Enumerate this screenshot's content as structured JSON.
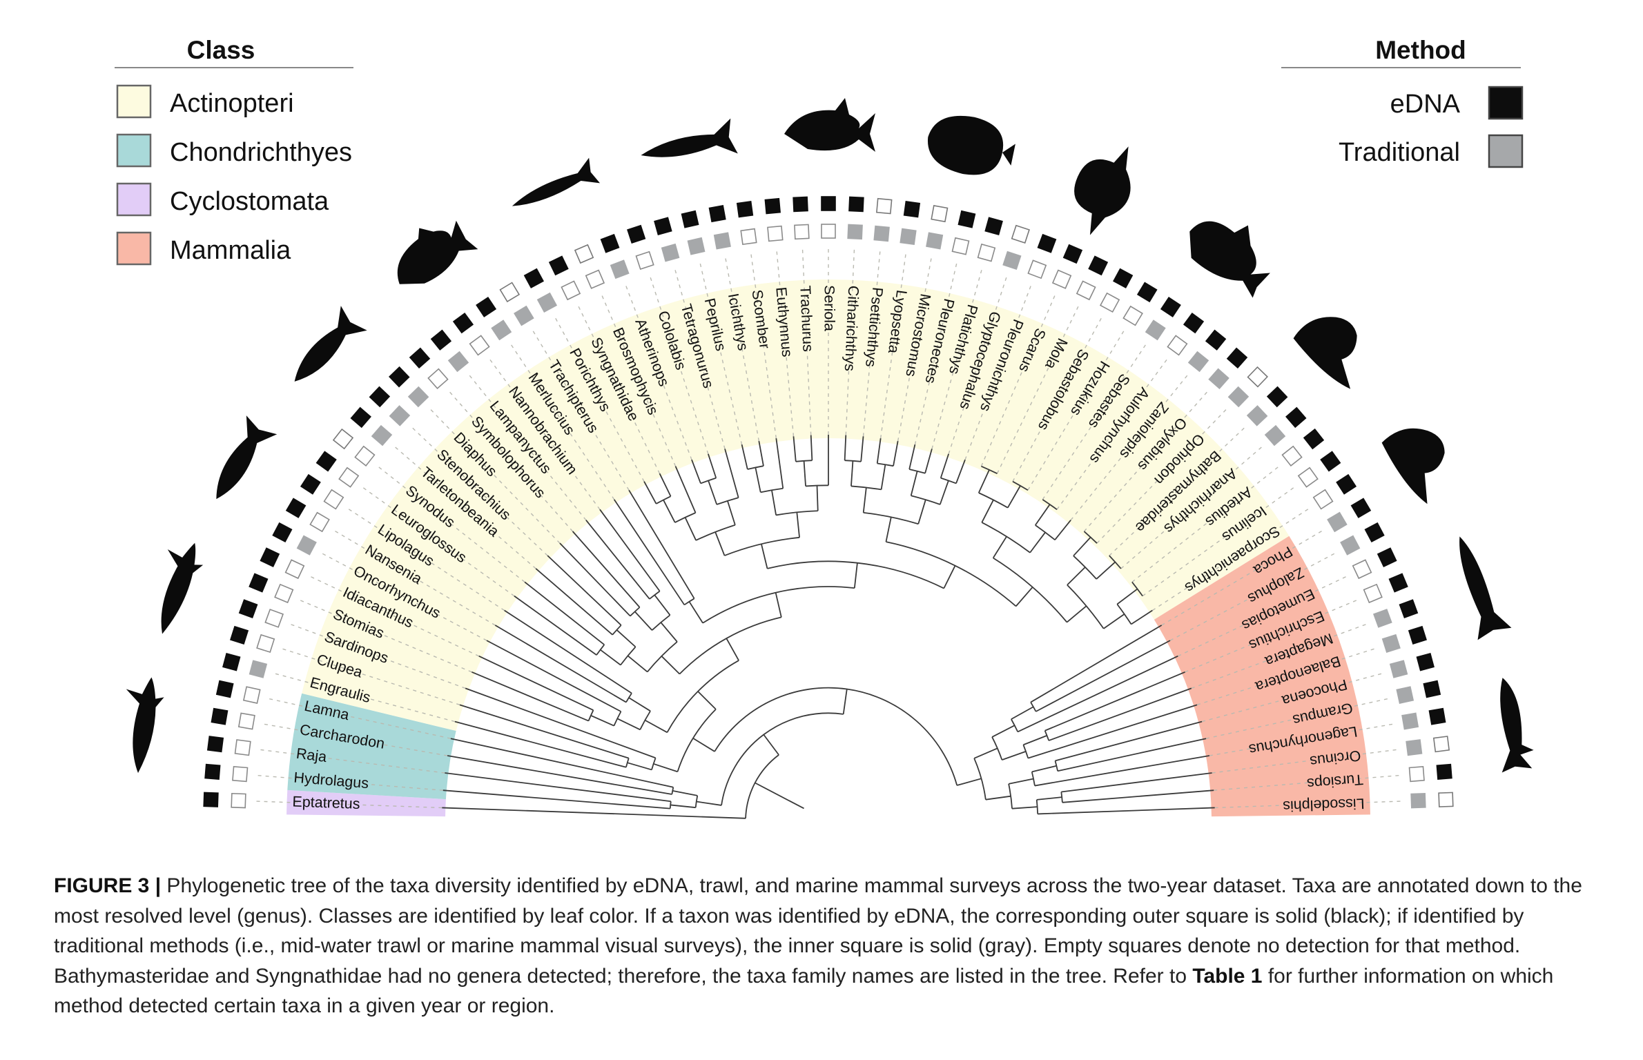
{
  "legend": {
    "class_title": "Class",
    "classes": [
      {
        "key": "Actinopteri",
        "label": "Actinopteri",
        "color": "#fdfbe0"
      },
      {
        "key": "Chondrichthyes",
        "label": "Chondrichthyes",
        "color": "#a9d9d9"
      },
      {
        "key": "Cyclostomata",
        "label": "Cyclostomata",
        "color": "#e2cdf7"
      },
      {
        "key": "Mammalia",
        "label": "Mammalia",
        "color": "#f9b8a7"
      }
    ],
    "method_title": "Method",
    "methods": [
      {
        "key": "eDNA",
        "label": "eDNA",
        "color": "#0d0d0d"
      },
      {
        "key": "Traditional",
        "label": "Traditional",
        "color": "#a6a8aa"
      }
    ]
  },
  "taxa": [
    {
      "name": "Eptatretus",
      "class": "Cyclostomata",
      "edna": true,
      "trad": false
    },
    {
      "name": "Hydrolagus",
      "class": "Chondrichthyes",
      "edna": true,
      "trad": false
    },
    {
      "name": "Raja",
      "class": "Chondrichthyes",
      "edna": true,
      "trad": false
    },
    {
      "name": "Carcharodon",
      "class": "Chondrichthyes",
      "edna": true,
      "trad": false
    },
    {
      "name": "Lamna",
      "class": "Chondrichthyes",
      "edna": true,
      "trad": false
    },
    {
      "name": "Engraulis",
      "class": "Actinopteri",
      "edna": true,
      "trad": true
    },
    {
      "name": "Clupea",
      "class": "Actinopteri",
      "edna": true,
      "trad": false
    },
    {
      "name": "Sardinops",
      "class": "Actinopteri",
      "edna": true,
      "trad": false
    },
    {
      "name": "Stomias",
      "class": "Actinopteri",
      "edna": true,
      "trad": false
    },
    {
      "name": "Idiacanthus",
      "class": "Actinopteri",
      "edna": true,
      "trad": false
    },
    {
      "name": "Oncorhynchus",
      "class": "Actinopteri",
      "edna": true,
      "trad": true
    },
    {
      "name": "Nansenia",
      "class": "Actinopteri",
      "edna": true,
      "trad": false
    },
    {
      "name": "Lipolagus",
      "class": "Actinopteri",
      "edna": true,
      "trad": false
    },
    {
      "name": "Leuroglossus",
      "class": "Actinopteri",
      "edna": true,
      "trad": false
    },
    {
      "name": "Synodus",
      "class": "Actinopteri",
      "edna": false,
      "trad": false
    },
    {
      "name": "Tarletonbeania",
      "class": "Actinopteri",
      "edna": true,
      "trad": true
    },
    {
      "name": "Stenobrachius",
      "class": "Actinopteri",
      "edna": true,
      "trad": true
    },
    {
      "name": "Diaphus",
      "class": "Actinopteri",
      "edna": true,
      "trad": true
    },
    {
      "name": "Symbolophorus",
      "class": "Actinopteri",
      "edna": true,
      "trad": false
    },
    {
      "name": "Lampanyctus",
      "class": "Actinopteri",
      "edna": true,
      "trad": true
    },
    {
      "name": "Nannobrachium",
      "class": "Actinopteri",
      "edna": true,
      "trad": false
    },
    {
      "name": "Merluccius",
      "class": "Actinopteri",
      "edna": true,
      "trad": true
    },
    {
      "name": "Trachipterus",
      "class": "Actinopteri",
      "edna": false,
      "trad": true
    },
    {
      "name": "Porichthys",
      "class": "Actinopteri",
      "edna": true,
      "trad": true
    },
    {
      "name": "Syngnathidae",
      "class": "Actinopteri",
      "edna": true,
      "trad": false
    },
    {
      "name": "Brosmophycis",
      "class": "Actinopteri",
      "edna": false,
      "trad": false
    },
    {
      "name": "Atherinops",
      "class": "Actinopteri",
      "edna": true,
      "trad": true
    },
    {
      "name": "Cololabis",
      "class": "Actinopteri",
      "edna": true,
      "trad": false
    },
    {
      "name": "Tetragonurus",
      "class": "Actinopteri",
      "edna": true,
      "trad": true
    },
    {
      "name": "Peprilus",
      "class": "Actinopteri",
      "edna": true,
      "trad": true
    },
    {
      "name": "Icichthys",
      "class": "Actinopteri",
      "edna": true,
      "trad": true
    },
    {
      "name": "Scomber",
      "class": "Actinopteri",
      "edna": true,
      "trad": false
    },
    {
      "name": "Euthynnus",
      "class": "Actinopteri",
      "edna": true,
      "trad": false
    },
    {
      "name": "Trachurus",
      "class": "Actinopteri",
      "edna": true,
      "trad": false
    },
    {
      "name": "Seriola",
      "class": "Actinopteri",
      "edna": true,
      "trad": false
    },
    {
      "name": "Citharichthys",
      "class": "Actinopteri",
      "edna": true,
      "trad": true
    },
    {
      "name": "Psettichthys",
      "class": "Actinopteri",
      "edna": false,
      "trad": true
    },
    {
      "name": "Lyopsetta",
      "class": "Actinopteri",
      "edna": true,
      "trad": true
    },
    {
      "name": "Microstomus",
      "class": "Actinopteri",
      "edna": false,
      "trad": true
    },
    {
      "name": "Pleuronectes",
      "class": "Actinopteri",
      "edna": true,
      "trad": false
    },
    {
      "name": "Platichthys",
      "class": "Actinopteri",
      "edna": true,
      "trad": false
    },
    {
      "name": "Glyptocephalus",
      "class": "Actinopteri",
      "edna": false,
      "trad": true
    },
    {
      "name": "Pleuronichthys",
      "class": "Actinopteri",
      "edna": true,
      "trad": false
    },
    {
      "name": "Scarus",
      "class": "Actinopteri",
      "edna": true,
      "trad": false
    },
    {
      "name": "Mola",
      "class": "Actinopteri",
      "edna": true,
      "trad": false
    },
    {
      "name": "Sebastolobus",
      "class": "Actinopteri",
      "edna": true,
      "trad": false
    },
    {
      "name": "Hozukius",
      "class": "Actinopteri",
      "edna": true,
      "trad": false
    },
    {
      "name": "Sebastes",
      "class": "Actinopteri",
      "edna": true,
      "trad": true
    },
    {
      "name": "Aulorhynchus",
      "class": "Actinopteri",
      "edna": true,
      "trad": false
    },
    {
      "name": "Zaniolepis",
      "class": "Actinopteri",
      "edna": true,
      "trad": true
    },
    {
      "name": "Oxylebius",
      "class": "Actinopteri",
      "edna": true,
      "trad": true
    },
    {
      "name": "Ophiodon",
      "class": "Actinopteri",
      "edna": false,
      "trad": true
    },
    {
      "name": "Bathymasteridae",
      "class": "Actinopteri",
      "edna": true,
      "trad": true
    },
    {
      "name": "Anarrhichthys",
      "class": "Actinopteri",
      "edna": true,
      "trad": true
    },
    {
      "name": "Artedius",
      "class": "Actinopteri",
      "edna": true,
      "trad": false
    },
    {
      "name": "Icelinus",
      "class": "Actinopteri",
      "edna": true,
      "trad": false
    },
    {
      "name": "Scorpaenichthys",
      "class": "Actinopteri",
      "edna": true,
      "trad": false
    },
    {
      "name": "Phoca",
      "class": "Mammalia",
      "edna": true,
      "trad": true
    },
    {
      "name": "Zalophus",
      "class": "Mammalia",
      "edna": true,
      "trad": true
    },
    {
      "name": "Eumetopias",
      "class": "Mammalia",
      "edna": true,
      "trad": false
    },
    {
      "name": "Eschrichtius",
      "class": "Mammalia",
      "edna": true,
      "trad": false
    },
    {
      "name": "Megaptera",
      "class": "Mammalia",
      "edna": true,
      "trad": true
    },
    {
      "name": "Balaenoptera",
      "class": "Mammalia",
      "edna": true,
      "trad": true
    },
    {
      "name": "Phocoena",
      "class": "Mammalia",
      "edna": true,
      "trad": true
    },
    {
      "name": "Grampus",
      "class": "Mammalia",
      "edna": true,
      "trad": true
    },
    {
      "name": "Lagenorhynchus",
      "class": "Mammalia",
      "edna": true,
      "trad": true
    },
    {
      "name": "Orcinus",
      "class": "Mammalia",
      "edna": false,
      "trad": true
    },
    {
      "name": "Tursiops",
      "class": "Mammalia",
      "edna": true,
      "trad": false
    },
    {
      "name": "Lissodelphis",
      "class": "Mammalia",
      "edna": false,
      "trad": true
    }
  ],
  "silhouettes": [
    "shark",
    "shark",
    "fish",
    "fish",
    "rockfish",
    "sardine",
    "mackerel",
    "jack",
    "flatfish",
    "sunfish",
    "sculpin",
    "sea-lion",
    "sea-lion",
    "whale",
    "dolphin"
  ],
  "caption": {
    "label": "FIGURE 3 |",
    "text_1": " Phylogenetic tree of the taxa diversity identified by eDNA, trawl, and marine mammal surveys across the two-year dataset. Taxa are annotated down to the most resolved level (genus). Classes are identified by leaf color. If a taxon was identified by eDNA, the corresponding outer square is solid (black); if identified by traditional methods (i.e., mid-water trawl or marine mammal visual surveys), the inner square is solid (gray). Empty squares denote no detection for that method. Bathymasteridae and Syngnathidae had no genera detected; therefore, the taxa family names are listed in the tree. Refer to ",
    "table_ref": "Table 1",
    "text_2": " for further information on which method detected certain taxa in a given year or region."
  }
}
